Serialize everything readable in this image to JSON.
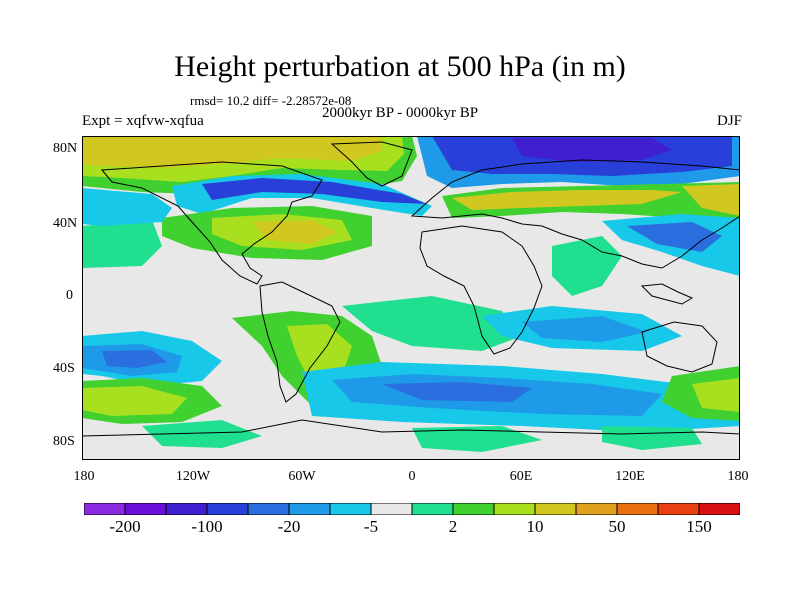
{
  "title": "Height perturbation at 500 hPa (in m)",
  "stats": "rmsd= 10.2 diff= -2.28572e-08",
  "subtitle": "2000kyr BP - 0000kyr BP",
  "experiment": "Expt = xqfvw-xqfua",
  "season": "DJF",
  "lat_labels": [
    "80N",
    "40N",
    "0",
    "40S",
    "80S"
  ],
  "lon_labels": [
    "180",
    "120W",
    "60W",
    "0",
    "60E",
    "120E",
    "180"
  ],
  "colorbar": {
    "labels": [
      "-200",
      "-100",
      "-20",
      "-5",
      "2",
      "10",
      "50",
      "150"
    ],
    "colors": [
      "#8a2be2",
      "#6a0fd8",
      "#3f1fd0",
      "#2840d8",
      "#2a6ee0",
      "#1e9ae8",
      "#18c8e8",
      "#e8e8e8",
      "#20e090",
      "#40d030",
      "#a8e020",
      "#d0c820",
      "#e0a020",
      "#e87010",
      "#e84010",
      "#d81010"
    ]
  },
  "palette": {
    "neutral": "#e8e8e8",
    "land_outline": "#000000"
  }
}
